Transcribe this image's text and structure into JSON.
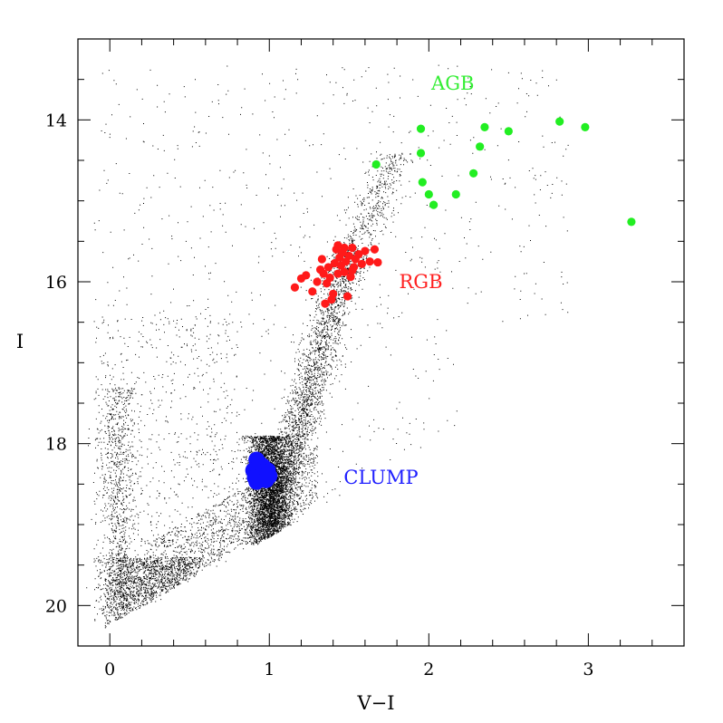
{
  "chart_data": {
    "type": "scatter",
    "title": "",
    "xlabel": "V−I",
    "ylabel": "I",
    "xlim": [
      -0.2,
      3.6
    ],
    "ylim": [
      20.5,
      13.0
    ],
    "y_inverted": true,
    "grid": false,
    "legend": "none",
    "x_ticks": [
      "0",
      "1",
      "2",
      "3"
    ],
    "x_tick_values": [
      0,
      1,
      2,
      3
    ],
    "y_ticks": [
      "14",
      "16",
      "18",
      "20"
    ],
    "y_tick_values": [
      14,
      16,
      18,
      20
    ],
    "field_stars": {
      "color": "#000000",
      "description_of_distribution": [
        {
          "x_range": [
            0.95,
            1.1
          ],
          "y_range": [
            17.9,
            19.1
          ],
          "density": "high"
        }
      ]
    },
    "annotations": [
      {
        "text": "AGB",
        "x": 2.15,
        "y": 13.55,
        "color": "#33ee33"
      },
      {
        "text": "RGB",
        "x": 1.95,
        "y": 16.0,
        "color": "#ff2020"
      },
      {
        "text": "CLUMP",
        "x": 1.7,
        "y": 18.42,
        "color": "#2020ff"
      }
    ],
    "series": [
      {
        "name": "AGB",
        "color": "#22ee22",
        "marker": "circle",
        "points": [
          [
            1.67,
            14.55
          ],
          [
            1.95,
            14.11
          ],
          [
            1.95,
            14.41
          ],
          [
            1.96,
            14.77
          ],
          [
            2.0,
            14.92
          ],
          [
            2.03,
            15.05
          ],
          [
            2.17,
            14.92
          ],
          [
            2.28,
            14.66
          ],
          [
            2.32,
            14.33
          ],
          [
            2.35,
            14.09
          ],
          [
            2.5,
            14.14
          ],
          [
            2.82,
            14.02
          ],
          [
            2.98,
            14.09
          ],
          [
            3.27,
            15.26
          ]
        ]
      },
      {
        "name": "RGB",
        "color": "#ff1a1a",
        "marker": "circle",
        "points": [
          [
            1.16,
            16.07
          ],
          [
            1.2,
            15.96
          ],
          [
            1.23,
            15.92
          ],
          [
            1.27,
            16.12
          ],
          [
            1.3,
            16.0
          ],
          [
            1.32,
            15.85
          ],
          [
            1.33,
            15.72
          ],
          [
            1.35,
            16.27
          ],
          [
            1.36,
            16.02
          ],
          [
            1.37,
            15.82
          ],
          [
            1.38,
            15.95
          ],
          [
            1.4,
            16.15
          ],
          [
            1.41,
            15.77
          ],
          [
            1.42,
            15.6
          ],
          [
            1.43,
            15.9
          ],
          [
            1.44,
            15.7
          ],
          [
            1.45,
            15.8
          ],
          [
            1.46,
            15.64
          ],
          [
            1.47,
            15.88
          ],
          [
            1.48,
            15.75
          ],
          [
            1.49,
            16.18
          ],
          [
            1.5,
            15.68
          ],
          [
            1.51,
            15.94
          ],
          [
            1.52,
            15.58
          ],
          [
            1.53,
            15.82
          ],
          [
            1.54,
            15.72
          ],
          [
            1.56,
            15.66
          ],
          [
            1.58,
            15.78
          ],
          [
            1.6,
            15.62
          ],
          [
            1.63,
            15.75
          ],
          [
            1.66,
            15.6
          ],
          [
            1.68,
            15.76
          ],
          [
            1.43,
            15.55
          ],
          [
            1.39,
            16.22
          ],
          [
            1.47,
            15.58
          ],
          [
            1.34,
            15.9
          ],
          [
            1.52,
            15.86
          ]
        ]
      },
      {
        "name": "CLUMP",
        "color": "#1010ff",
        "marker": "circle",
        "points": [
          [
            0.92,
            18.2
          ],
          [
            0.94,
            18.25
          ],
          [
            0.96,
            18.28
          ],
          [
            0.9,
            18.33
          ],
          [
            0.93,
            18.36
          ],
          [
            0.97,
            18.38
          ],
          [
            0.99,
            18.33
          ],
          [
            0.91,
            18.42
          ],
          [
            0.95,
            18.44
          ],
          [
            0.98,
            18.45
          ],
          [
            1.0,
            18.4
          ],
          [
            0.93,
            18.3
          ],
          [
            0.96,
            18.35
          ],
          [
            0.94,
            18.41
          ],
          [
            0.92,
            18.47
          ]
        ]
      }
    ]
  }
}
